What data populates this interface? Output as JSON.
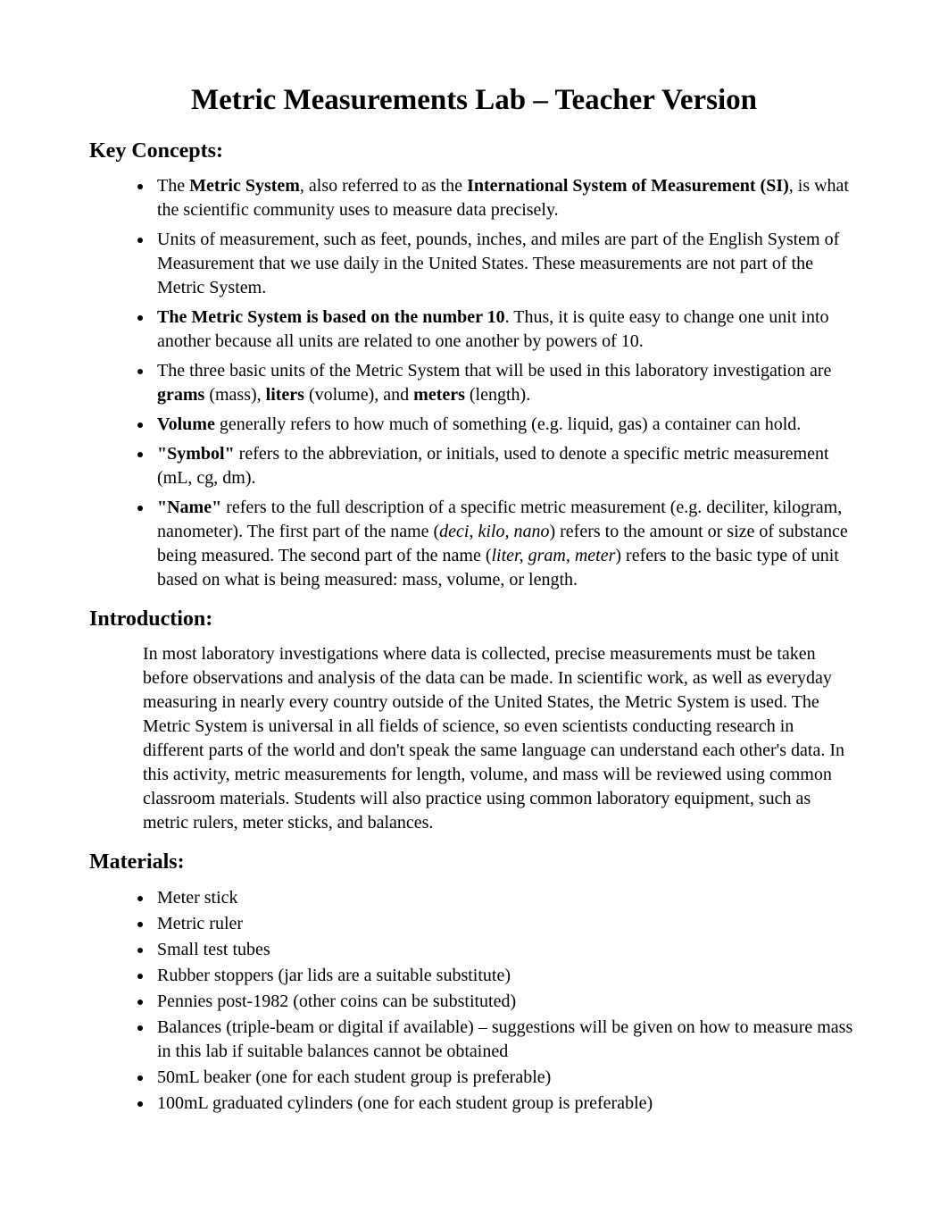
{
  "title": "Metric Measurements Lab – Teacher Version",
  "sections": {
    "key_concepts": {
      "heading": "Key Concepts:",
      "items": [
        {
          "parts": [
            {
              "t": "The ",
              "b": false,
              "i": false
            },
            {
              "t": "Metric System",
              "b": true,
              "i": false
            },
            {
              "t": ", also referred to as the ",
              "b": false,
              "i": false
            },
            {
              "t": "International System of Measurement (SI)",
              "b": true,
              "i": false
            },
            {
              "t": ", is what the scientific community uses to measure data precisely.",
              "b": false,
              "i": false
            }
          ]
        },
        {
          "parts": [
            {
              "t": "Units of measurement, such as feet, pounds, inches, and miles are part of the English System of Measurement that we use daily in the United States. These measurements are not part of the Metric System.",
              "b": false,
              "i": false
            }
          ]
        },
        {
          "parts": [
            {
              "t": "The Metric System is based on the number 10",
              "b": true,
              "i": false
            },
            {
              "t": ". Thus, it is quite easy to change one unit into another because all units are related to one another by powers of 10.",
              "b": false,
              "i": false
            }
          ]
        },
        {
          "parts": [
            {
              "t": "The three basic units of the Metric System that will be used in this laboratory investigation are ",
              "b": false,
              "i": false
            },
            {
              "t": "grams",
              "b": true,
              "i": false
            },
            {
              "t": " (mass), ",
              "b": false,
              "i": false
            },
            {
              "t": "liters",
              "b": true,
              "i": false
            },
            {
              "t": " (volume), and ",
              "b": false,
              "i": false
            },
            {
              "t": "meters",
              "b": true,
              "i": false
            },
            {
              "t": " (length).",
              "b": false,
              "i": false
            }
          ]
        },
        {
          "parts": [
            {
              "t": "Volume",
              "b": true,
              "i": false
            },
            {
              "t": " generally refers to how much of something (e.g. liquid, gas) a container can hold.",
              "b": false,
              "i": false
            }
          ]
        },
        {
          "parts": [
            {
              "t": "\"Symbol\"",
              "b": true,
              "i": false
            },
            {
              "t": " refers to the abbreviation, or initials, used to denote a specific metric measurement (mL, cg, dm).",
              "b": false,
              "i": false
            }
          ]
        },
        {
          "parts": [
            {
              "t": "\"Name\"",
              "b": true,
              "i": false
            },
            {
              "t": " refers to the full description of a specific metric measurement (e.g. deciliter, kilogram, nanometer). The first part of the name (",
              "b": false,
              "i": false
            },
            {
              "t": "deci, kilo, nano",
              "b": false,
              "i": true
            },
            {
              "t": ") refers to the amount or size of substance being measured. The second part of the name (",
              "b": false,
              "i": false
            },
            {
              "t": "liter, gram, meter",
              "b": false,
              "i": true
            },
            {
              "t": ") refers to the basic type of unit based on what is being measured: mass, volume, or length.",
              "b": false,
              "i": false
            }
          ]
        }
      ]
    },
    "introduction": {
      "heading": "Introduction:",
      "paragraph": "In most laboratory investigations where data is collected, precise measurements must be taken before observations and analysis of the data can be made. In scientific work, as well as everyday measuring in nearly every country outside of the United States, the Metric System is used. The Metric System is universal in all fields of science, so even scientists conducting research in different parts of the world and don't speak the same language can understand each other's data. In this activity, metric measurements for length, volume, and mass will be reviewed using common classroom materials. Students will also practice using common laboratory equipment, such as metric rulers, meter sticks, and balances."
    },
    "materials": {
      "heading": "Materials:",
      "items": [
        "Meter stick",
        "Metric ruler",
        "Small test tubes",
        "Rubber stoppers (jar lids are a suitable substitute)",
        "Pennies post-1982 (other coins can be substituted)",
        "Balances (triple-beam or digital if available) – suggestions will be given on how to measure mass in this lab if suitable balances cannot be obtained",
        "50mL beaker (one for each student group is preferable)",
        "100mL graduated cylinders (one for each student  group is preferable)"
      ]
    }
  }
}
